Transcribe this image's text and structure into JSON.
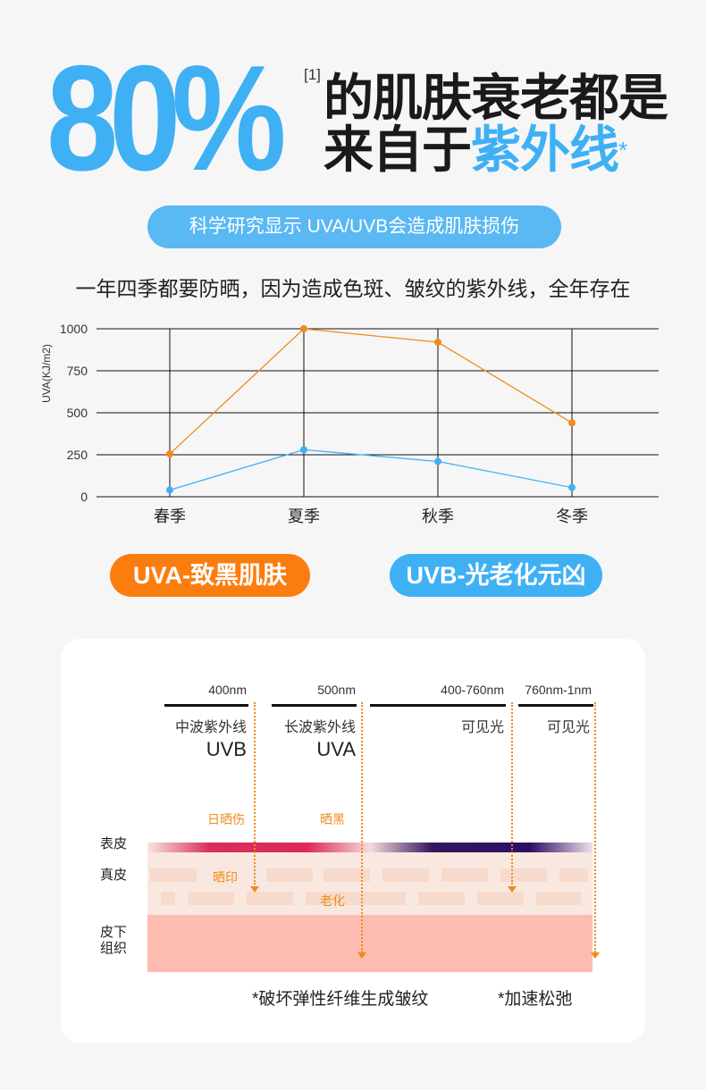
{
  "headline": {
    "percent": "80%",
    "ref": "[1]",
    "line1": "的肌肤衰老都是",
    "line2_prefix": "来自于",
    "line2_highlight": "紫外线",
    "line2_mark": "*"
  },
  "pill": "科学研究显示 UVA/UVB会造成肌肤损伤",
  "subtitle": "一年四季都要防晒，因为造成色斑、皱纹的紫外线，全年存在",
  "chart_data": {
    "type": "line",
    "title": "",
    "ylabel": "UVA(KJ/m2)",
    "xlabel": "",
    "categories": [
      "春季",
      "夏季",
      "秋季",
      "冬季"
    ],
    "yticks": [
      "0",
      "250",
      "500",
      "750",
      "1000"
    ],
    "ylim": [
      0,
      1000
    ],
    "grid": true,
    "series": [
      {
        "name": "UVA",
        "color": "#f28a1c",
        "values": [
          255,
          1000,
          920,
          440
        ]
      },
      {
        "name": "UVB",
        "color": "#3fb0f4",
        "values": [
          40,
          280,
          210,
          55
        ]
      }
    ]
  },
  "legend_buttons": {
    "uva": "UVA-致黑肌肤",
    "uvb": "UVB-光老化元凶"
  },
  "diagram": {
    "columns": [
      {
        "nm": "400nm",
        "cn": "中波紫外线",
        "en": "UVB"
      },
      {
        "nm": "500nm",
        "cn": "长波紫外线",
        "en": "UVA"
      },
      {
        "nm": "400-760nm",
        "cn": "可见光",
        "en": ""
      },
      {
        "nm": "760nm-1nm",
        "cn": "可见光",
        "en": ""
      }
    ],
    "effects": {
      "sunburn": "日晒伤",
      "tan": "晒黑",
      "spots": "晒印",
      "aging": "老化"
    },
    "layers": {
      "epidermis": "表皮",
      "dermis": "真皮",
      "subcutis": "皮下组织"
    },
    "footnotes": [
      "*破坏弹性纤维生成皱纹",
      "*加速松弛"
    ]
  }
}
